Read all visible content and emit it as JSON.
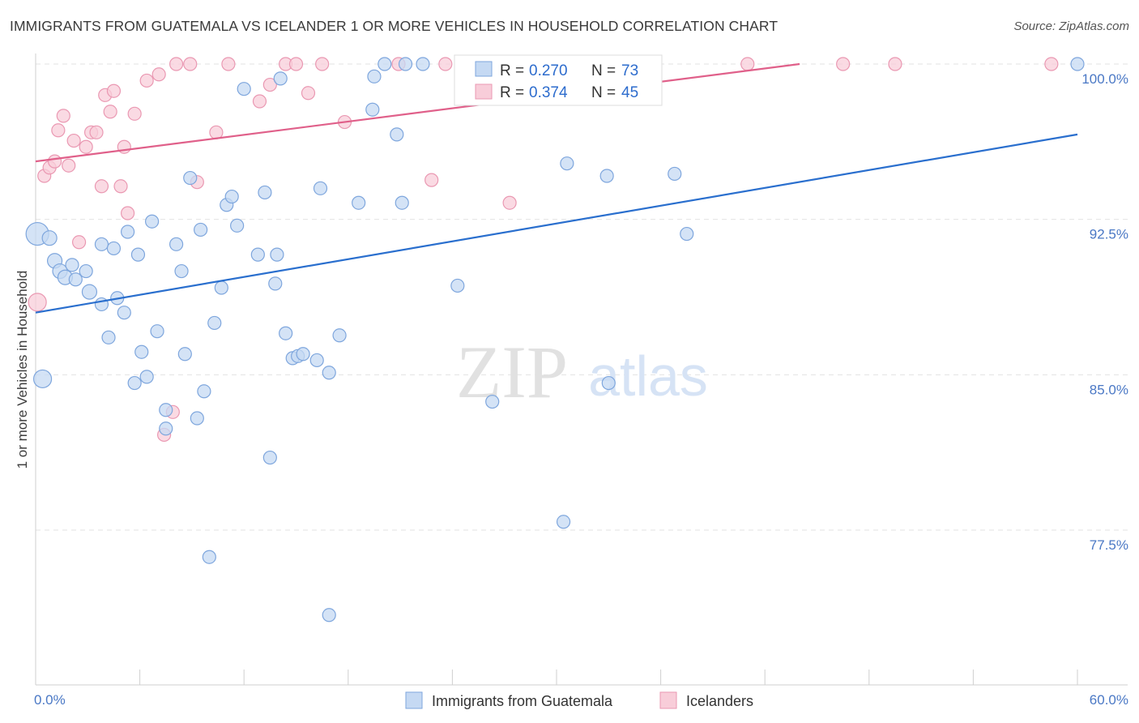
{
  "title": "IMMIGRANTS FROM GUATEMALA VS ICELANDER 1 OR MORE VEHICLES IN HOUSEHOLD CORRELATION CHART",
  "source": "Source: ZipAtlas.com",
  "watermark": {
    "zip": "ZIP",
    "atlas": "atlas"
  },
  "colors": {
    "blue_fill": "#c5d9f3",
    "blue_stroke": "#7ea6dd",
    "blue_line": "#2a6fce",
    "pink_fill": "#f8cdd9",
    "pink_stroke": "#ea98b2",
    "pink_line": "#e0608a",
    "grid": "#e3e3e3",
    "tick_text": "#4a78c5"
  },
  "legend": {
    "rows": [
      {
        "r_label": "R =",
        "r_value": "0.270",
        "n_label": "N =",
        "n_value": "73",
        "series": "blue"
      },
      {
        "r_label": "R =",
        "r_value": "0.374",
        "n_label": "N =",
        "n_value": "45",
        "series": "pink"
      }
    ]
  },
  "chart_data": {
    "type": "scatter",
    "title": "IMMIGRANTS FROM GUATEMALA VS ICELANDER 1 OR MORE VEHICLES IN HOUSEHOLD CORRELATION CHART",
    "xlabel": "",
    "ylabel": "1 or more Vehicles in Household",
    "xlim": [
      0,
      60
    ],
    "ylim": [
      72.5,
      101.5
    ],
    "x_tick_labels": [
      {
        "value": 0,
        "label": "0.0%"
      },
      {
        "value": 60,
        "label": "60.0%"
      }
    ],
    "x_minor_ticks": [
      0,
      6,
      12,
      18,
      24,
      30,
      36,
      42,
      48,
      54,
      60
    ],
    "y_ticks": [
      {
        "value": 100,
        "label": "100.0%"
      },
      {
        "value": 92.5,
        "label": "92.5%"
      },
      {
        "value": 85,
        "label": "85.0%"
      },
      {
        "value": 77.5,
        "label": "77.5%"
      }
    ],
    "grid": true,
    "legend_position": "top-center",
    "series": [
      {
        "name": "Immigrants from Guatemala",
        "color": "blue",
        "trend": {
          "x0": 0,
          "y0": 88.0,
          "x1": 60,
          "y1": 96.6
        },
        "points": [
          [
            0.1,
            91.8,
            28
          ],
          [
            0.8,
            91.6,
            18
          ],
          [
            0.4,
            84.8,
            22
          ],
          [
            1.1,
            90.5,
            18
          ],
          [
            1.4,
            90.0,
            18
          ],
          [
            1.7,
            89.7,
            18
          ],
          [
            2.3,
            89.6,
            16
          ],
          [
            2.1,
            90.3,
            16
          ],
          [
            2.9,
            90.0,
            16
          ],
          [
            3.1,
            89.0,
            18
          ],
          [
            3.8,
            91.3,
            16
          ],
          [
            3.8,
            88.4,
            16
          ],
          [
            4.2,
            86.8,
            16
          ],
          [
            4.5,
            91.1,
            16
          ],
          [
            4.7,
            88.7,
            16
          ],
          [
            5.1,
            88.0,
            16
          ],
          [
            5.3,
            91.9,
            16
          ],
          [
            5.7,
            84.6,
            16
          ],
          [
            5.9,
            90.8,
            16
          ],
          [
            6.1,
            86.1,
            16
          ],
          [
            6.4,
            84.9,
            16
          ],
          [
            6.7,
            92.4,
            16
          ],
          [
            7.0,
            87.1,
            16
          ],
          [
            7.5,
            82.4,
            16
          ],
          [
            7.5,
            83.3,
            16
          ],
          [
            8.1,
            91.3,
            16
          ],
          [
            8.4,
            90.0,
            16
          ],
          [
            8.6,
            86.0,
            16
          ],
          [
            8.9,
            94.5,
            16
          ],
          [
            9.3,
            82.9,
            16
          ],
          [
            9.5,
            92.0,
            16
          ],
          [
            9.7,
            84.2,
            16
          ],
          [
            10.0,
            76.2,
            16
          ],
          [
            10.3,
            87.5,
            16
          ],
          [
            10.7,
            89.2,
            16
          ],
          [
            11.0,
            93.2,
            16
          ],
          [
            11.3,
            93.6,
            16
          ],
          [
            11.6,
            92.2,
            16
          ],
          [
            12.0,
            98.8,
            16
          ],
          [
            12.8,
            90.8,
            16
          ],
          [
            13.2,
            93.8,
            16
          ],
          [
            13.5,
            81.0,
            16
          ],
          [
            13.8,
            89.4,
            16
          ],
          [
            13.9,
            90.8,
            16
          ],
          [
            14.1,
            99.3,
            16
          ],
          [
            14.4,
            87.0,
            16
          ],
          [
            14.8,
            85.8,
            16
          ],
          [
            15.1,
            85.9,
            16
          ],
          [
            15.4,
            86.0,
            16
          ],
          [
            16.2,
            85.7,
            16
          ],
          [
            16.4,
            94.0,
            16
          ],
          [
            16.9,
            85.1,
            16
          ],
          [
            16.9,
            73.4,
            16
          ],
          [
            17.5,
            86.9,
            16
          ],
          [
            18.6,
            93.3,
            16
          ],
          [
            19.4,
            97.8,
            16
          ],
          [
            19.5,
            99.4,
            16
          ],
          [
            20.1,
            100.0,
            16
          ],
          [
            20.8,
            96.6,
            16
          ],
          [
            21.1,
            93.3,
            16
          ],
          [
            21.3,
            100.0,
            16
          ],
          [
            22.3,
            100.0,
            16
          ],
          [
            24.3,
            89.3,
            16
          ],
          [
            24.5,
            100.0,
            16
          ],
          [
            25.8,
            100.0,
            16
          ],
          [
            26.3,
            83.7,
            16
          ],
          [
            30.4,
            77.9,
            16
          ],
          [
            30.6,
            95.2,
            16
          ],
          [
            32.9,
            94.6,
            16
          ],
          [
            33.0,
            84.6,
            16
          ],
          [
            36.8,
            94.7,
            16
          ],
          [
            37.5,
            91.8,
            16
          ],
          [
            60.0,
            100.0,
            16
          ]
        ]
      },
      {
        "name": "Icelanders",
        "color": "pink",
        "trend": {
          "x0": 0,
          "y0": 95.3,
          "x1": 44,
          "y1": 100.0
        },
        "points": [
          [
            0.1,
            88.5,
            22
          ],
          [
            0.5,
            94.6,
            16
          ],
          [
            0.8,
            95.0,
            16
          ],
          [
            1.1,
            95.3,
            16
          ],
          [
            1.3,
            96.8,
            16
          ],
          [
            1.6,
            97.5,
            16
          ],
          [
            1.9,
            95.1,
            16
          ],
          [
            2.2,
            96.3,
            16
          ],
          [
            2.5,
            91.4,
            16
          ],
          [
            2.9,
            96.0,
            16
          ],
          [
            3.2,
            96.7,
            16
          ],
          [
            3.5,
            96.7,
            16
          ],
          [
            3.8,
            94.1,
            16
          ],
          [
            4.0,
            98.5,
            16
          ],
          [
            4.3,
            97.7,
            16
          ],
          [
            4.5,
            98.7,
            16
          ],
          [
            4.9,
            94.1,
            16
          ],
          [
            5.1,
            96.0,
            16
          ],
          [
            5.3,
            92.8,
            16
          ],
          [
            5.7,
            97.6,
            16
          ],
          [
            6.4,
            99.2,
            16
          ],
          [
            7.1,
            99.5,
            16
          ],
          [
            7.4,
            82.1,
            16
          ],
          [
            7.9,
            83.2,
            16
          ],
          [
            8.1,
            100.0,
            16
          ],
          [
            8.9,
            100.0,
            16
          ],
          [
            9.3,
            94.3,
            16
          ],
          [
            10.4,
            96.7,
            16
          ],
          [
            11.1,
            100.0,
            16
          ],
          [
            12.9,
            98.2,
            16
          ],
          [
            13.5,
            99.0,
            16
          ],
          [
            14.4,
            100.0,
            16
          ],
          [
            15.0,
            100.0,
            16
          ],
          [
            15.7,
            98.6,
            16
          ],
          [
            16.5,
            100.0,
            16
          ],
          [
            17.8,
            97.2,
            16
          ],
          [
            20.9,
            100.0,
            16
          ],
          [
            22.8,
            94.4,
            16
          ],
          [
            23.6,
            100.0,
            16
          ],
          [
            27.3,
            93.3,
            16
          ],
          [
            32.0,
            100.0,
            16
          ],
          [
            41.0,
            100.0,
            16
          ],
          [
            46.5,
            100.0,
            16
          ],
          [
            49.5,
            100.0,
            16
          ],
          [
            58.5,
            100.0,
            16
          ]
        ]
      }
    ]
  }
}
